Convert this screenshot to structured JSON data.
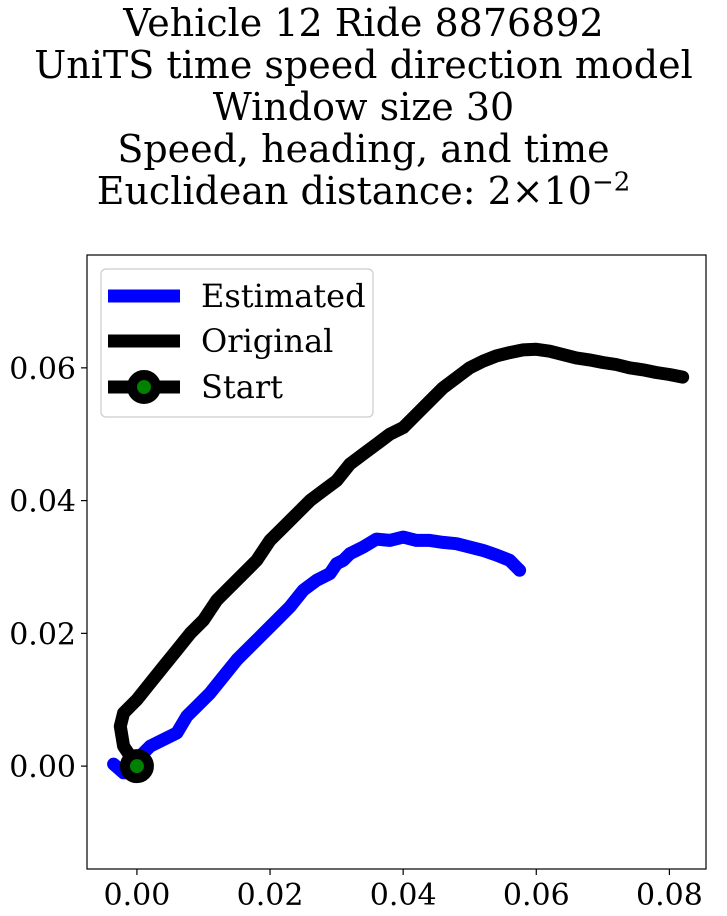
{
  "title": {
    "line1": "Vehicle 12 Ride 8876892",
    "line2": "UniTS time speed direction model",
    "line3": "Window size 30",
    "line4": "Speed, heading, and time",
    "line5_prefix": "Euclidean distance: 2",
    "line5_times": "×",
    "line5_base": "10",
    "line5_exp": "−2"
  },
  "chart_data": {
    "type": "line",
    "title": "Vehicle 12 Ride 8876892 UniTS time speed direction model Window size 30 Speed, heading, and time Euclidean distance: 2×10^-2",
    "xlabel": "",
    "ylabel": "",
    "xlim": [
      -0.0075,
      0.0855
    ],
    "ylim": [
      -0.0155,
      0.077
    ],
    "x_ticks": [
      0.0,
      0.02,
      0.04,
      0.06,
      0.08
    ],
    "x_tick_labels": [
      "0.00",
      "0.02",
      "0.04",
      "0.06",
      "0.08"
    ],
    "y_ticks": [
      0.0,
      0.02,
      0.04,
      0.06
    ],
    "y_tick_labels": [
      "0.00",
      "0.02",
      "0.04",
      "0.06"
    ],
    "grid": false,
    "legend_position": "top-left",
    "series": [
      {
        "name": "Estimated",
        "color": "#0000ff",
        "x": [
          -0.0035,
          -0.002,
          -0.0015,
          0.0,
          0.002,
          0.004,
          0.006,
          0.0075,
          0.009,
          0.011,
          0.013,
          0.015,
          0.017,
          0.019,
          0.021,
          0.023,
          0.025,
          0.027,
          0.029,
          0.03,
          0.031,
          0.032,
          0.034,
          0.036,
          0.038,
          0.04,
          0.042,
          0.044,
          0.046,
          0.048,
          0.05,
          0.052,
          0.054,
          0.056,
          0.057,
          0.0575
        ],
        "y": [
          0.0003,
          -0.001,
          -0.001,
          0.001,
          0.003,
          0.004,
          0.005,
          0.0075,
          0.009,
          0.011,
          0.0135,
          0.016,
          0.018,
          0.02,
          0.022,
          0.024,
          0.0265,
          0.028,
          0.029,
          0.0305,
          0.031,
          0.032,
          0.033,
          0.0342,
          0.034,
          0.0345,
          0.034,
          0.034,
          0.0337,
          0.0335,
          0.033,
          0.0325,
          0.0318,
          0.031,
          0.03,
          0.0295
        ]
      },
      {
        "name": "Original",
        "color": "#000000",
        "x": [
          0.0,
          -0.002,
          -0.0025,
          -0.002,
          0.0,
          0.002,
          0.004,
          0.006,
          0.008,
          0.01,
          0.012,
          0.014,
          0.016,
          0.018,
          0.02,
          0.022,
          0.024,
          0.026,
          0.028,
          0.03,
          0.032,
          0.034,
          0.036,
          0.038,
          0.04,
          0.042,
          0.044,
          0.046,
          0.048,
          0.05,
          0.052,
          0.054,
          0.056,
          0.058,
          0.06,
          0.062,
          0.064,
          0.066,
          0.068,
          0.07,
          0.072,
          0.074,
          0.076,
          0.078,
          0.08,
          0.082
        ],
        "y": [
          0.0,
          0.003,
          0.006,
          0.008,
          0.01,
          0.0125,
          0.015,
          0.0175,
          0.02,
          0.022,
          0.025,
          0.027,
          0.029,
          0.031,
          0.034,
          0.036,
          0.038,
          0.04,
          0.0415,
          0.043,
          0.0455,
          0.047,
          0.0485,
          0.05,
          0.051,
          0.053,
          0.055,
          0.057,
          0.0585,
          0.06,
          0.061,
          0.0618,
          0.0623,
          0.0627,
          0.0628,
          0.0625,
          0.062,
          0.0615,
          0.0612,
          0.0608,
          0.0605,
          0.06,
          0.0597,
          0.0593,
          0.059,
          0.0586
        ]
      },
      {
        "name": "Start",
        "color": "#000000",
        "marker_color": "#008000",
        "x": [
          0.0
        ],
        "y": [
          0.0
        ]
      }
    ]
  }
}
